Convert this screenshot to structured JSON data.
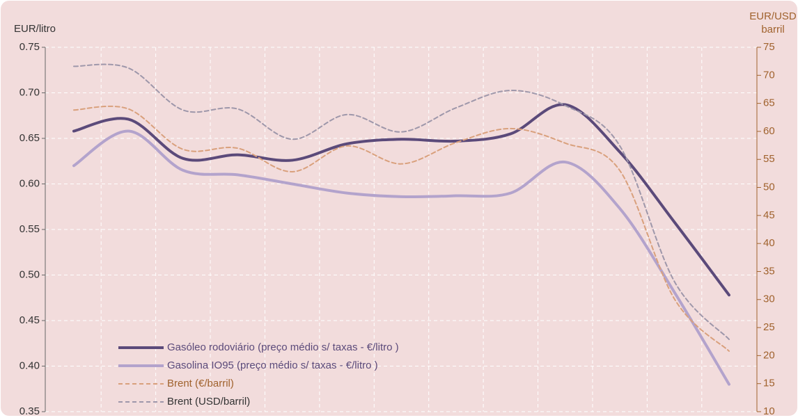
{
  "chart_data": {
    "type": "line",
    "y_label": "EUR/litro",
    "y2_label": [
      "EUR/USD",
      "barril"
    ],
    "categories": [
      null,
      null,
      null,
      null,
      null,
      null,
      null,
      null,
      null,
      null,
      null,
      null,
      null
    ],
    "series": [
      {
        "name": "Gasóleo rodoviário (preço médio s/ taxas - €/litro )",
        "color": "#5b4a7a",
        "dashed": false,
        "width": 4,
        "values": [
          0.658,
          0.671,
          0.628,
          0.632,
          0.626,
          0.644,
          0.649,
          0.647,
          0.655,
          0.687,
          0.635,
          0.558,
          0.478
        ]
      },
      {
        "name": "Gasolina IO95 (preço médio s/ taxas - €/litro )",
        "color": "#b3a3cc",
        "dashed": false,
        "width": 4,
        "values": [
          0.62,
          0.658,
          0.615,
          0.61,
          0.6,
          0.59,
          0.586,
          0.587,
          0.59,
          0.624,
          0.573,
          0.481,
          0.38
        ]
      },
      {
        "name": "Brent (€/barril)",
        "color": "#d9a07c",
        "dashed": true,
        "width": 2,
        "axis": "y2",
        "values": [
          63.8,
          64,
          56.8,
          57,
          52.8,
          57.4,
          54.2,
          58,
          60.5,
          57.9,
          53,
          30.1,
          20.8
        ]
      },
      {
        "name": "Brent (USD/barril)",
        "color": "#9e97aa",
        "dashed": true,
        "width": 2,
        "axis": "y2",
        "values": [
          71.6,
          71.3,
          63.8,
          64,
          58.6,
          63,
          59.9,
          64.2,
          67.3,
          64.6,
          57.4,
          33.2,
          22.9
        ]
      }
    ],
    "ylim": [
      0.35,
      0.75
    ],
    "yticks": [
      {
        "value": 0.35,
        "label": "0.35"
      },
      {
        "value": 0.4,
        "label": "0.40"
      },
      {
        "value": 0.45,
        "label": "0.45"
      },
      {
        "value": 0.5,
        "label": "0.50"
      },
      {
        "value": 0.55,
        "label": "0.55"
      },
      {
        "value": 0.6,
        "label": "0.60"
      },
      {
        "value": 0.65,
        "label": "0.65"
      },
      {
        "value": 0.7,
        "label": "0.70"
      },
      {
        "value": 0.75,
        "label": "0.75"
      }
    ],
    "y2lim": [
      10,
      75
    ],
    "y2ticks": [
      10,
      15,
      20,
      25,
      30,
      35,
      40,
      45,
      50,
      55,
      60,
      65,
      70,
      75
    ],
    "grid": true,
    "legend": "lower left"
  }
}
